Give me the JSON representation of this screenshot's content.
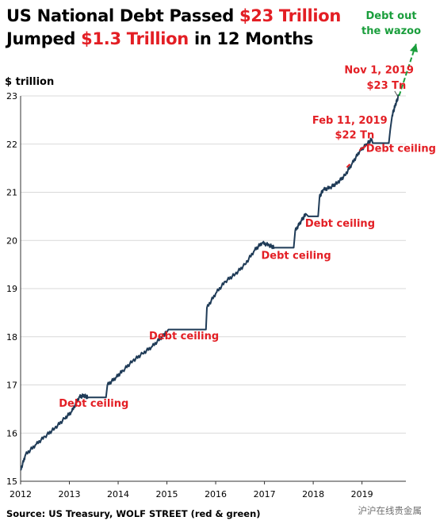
{
  "header": {
    "line1_prefix": "US National Debt Passed ",
    "line1_accent": "$23 Trillion",
    "line2_prefix": "Jumped ",
    "line2_accent": "$1.3 Trillion",
    "line2_suffix": " in 12 Months"
  },
  "colors": {
    "line": "#1f3b57",
    "accent": "#e31e24",
    "green": "#1a9e3c",
    "grid": "#d9d9d9",
    "axis": "#333333"
  },
  "footer": {
    "source": "Source: US Treasury, WOLF STREET (red & green)",
    "watermark": "沪沪在线贵金属"
  },
  "chart_data": {
    "type": "line",
    "title": "US National Debt Passed $23 Trillion",
    "subtitle": "Jumped $1.3 Trillion in 12 Months",
    "ylabel": "$ trillion",
    "xlabel": "",
    "xlim": [
      2012,
      2019.9
    ],
    "ylim": [
      15,
      23
    ],
    "x_ticks": [
      "2012",
      "2013",
      "2014",
      "2015",
      "2016",
      "2017",
      "2018",
      "2019"
    ],
    "y_ticks": [
      "15",
      "16",
      "17",
      "18",
      "19",
      "20",
      "21",
      "22",
      "23"
    ],
    "grid": "horizontal",
    "series": [
      {
        "points": [
          [
            2012.0,
            15.23
          ],
          [
            2012.1,
            15.55
          ],
          [
            2012.3,
            15.75
          ],
          [
            2012.5,
            15.93
          ],
          [
            2012.7,
            16.1
          ],
          [
            2012.9,
            16.3
          ],
          [
            2013.05,
            16.45
          ],
          [
            2013.2,
            16.75
          ],
          [
            2013.3,
            16.78
          ],
          [
            2013.38,
            16.74
          ],
          [
            2013.75,
            16.74
          ],
          [
            2013.78,
            17.0
          ],
          [
            2013.95,
            17.15
          ],
          [
            2014.1,
            17.3
          ],
          [
            2014.3,
            17.5
          ],
          [
            2014.5,
            17.65
          ],
          [
            2014.7,
            17.8
          ],
          [
            2014.9,
            18.0
          ],
          [
            2015.0,
            18.1
          ],
          [
            2015.03,
            18.15
          ],
          [
            2015.8,
            18.15
          ],
          [
            2015.82,
            18.6
          ],
          [
            2016.0,
            18.9
          ],
          [
            2016.2,
            19.15
          ],
          [
            2016.4,
            19.3
          ],
          [
            2016.6,
            19.5
          ],
          [
            2016.8,
            19.8
          ],
          [
            2016.95,
            19.95
          ],
          [
            2017.1,
            19.9
          ],
          [
            2017.2,
            19.85
          ],
          [
            2017.6,
            19.85
          ],
          [
            2017.63,
            20.2
          ],
          [
            2017.75,
            20.4
          ],
          [
            2017.85,
            20.55
          ],
          [
            2017.9,
            20.5
          ],
          [
            2018.1,
            20.5
          ],
          [
            2018.13,
            20.9
          ],
          [
            2018.2,
            21.05
          ],
          [
            2018.35,
            21.1
          ],
          [
            2018.5,
            21.2
          ],
          [
            2018.65,
            21.35
          ],
          [
            2018.8,
            21.6
          ],
          [
            2018.95,
            21.85
          ],
          [
            2019.1,
            22.0
          ],
          [
            2019.2,
            22.1
          ],
          [
            2019.22,
            22.02
          ],
          [
            2019.55,
            22.02
          ],
          [
            2019.58,
            22.3
          ],
          [
            2019.62,
            22.6
          ],
          [
            2019.68,
            22.8
          ],
          [
            2019.75,
            23.0
          ]
        ]
      }
    ],
    "annotations": [
      {
        "text": "Debt ceiling",
        "x": 2013.5,
        "y": 16.55,
        "color": "#e31e24"
      },
      {
        "text": "Debt ceiling",
        "x": 2015.35,
        "y": 17.95,
        "color": "#e31e24"
      },
      {
        "text": "Debt ceiling",
        "x": 2017.65,
        "y": 19.62,
        "color": "#e31e24"
      },
      {
        "text": "Debt ceiling",
        "x": 2018.55,
        "y": 20.28,
        "color": "#e31e24"
      },
      {
        "text": "Debt ceiling",
        "x": 2019.8,
        "y": 21.84,
        "color": "#e31e24"
      },
      {
        "text": "Feb 11, 2019",
        "x": 2018.75,
        "y": 22.42,
        "color": "#e31e24"
      },
      {
        "text": "$22 Tn",
        "x": 2018.85,
        "y": 22.12,
        "color": "#e31e24"
      },
      {
        "text": "Nov 1, 2019",
        "x": 2019.35,
        "y": 23.47,
        "color": "#e31e24"
      },
      {
        "text": "$23 Tn",
        "x": 2019.5,
        "y": 23.15,
        "color": "#e31e24"
      },
      {
        "text": "Debt out",
        "x": 2019.6,
        "y": 24.6,
        "color": "#1a9e3c"
      },
      {
        "text": "the wazoo",
        "x": 2019.6,
        "y": 24.28,
        "color": "#1a9e3c"
      }
    ]
  }
}
